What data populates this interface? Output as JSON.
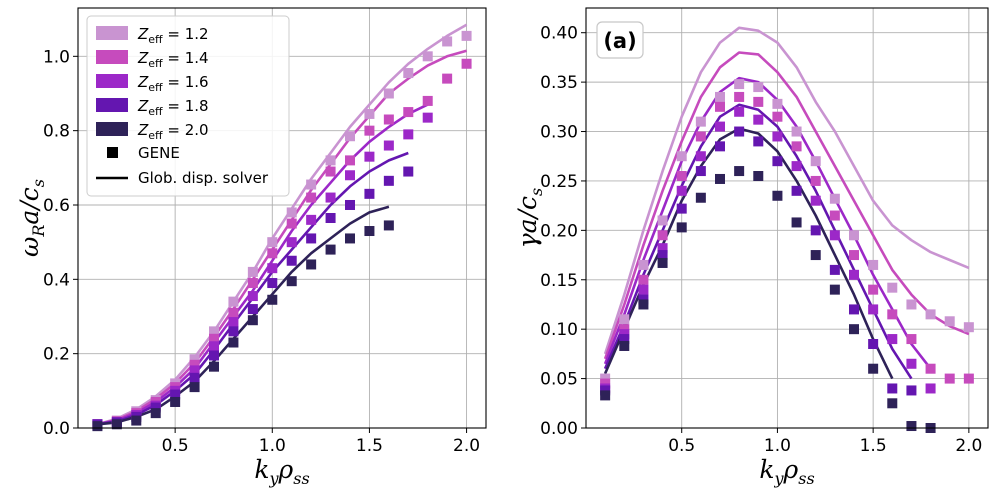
{
  "colors": {
    "series": [
      "#c994d1",
      "#c64bbd",
      "#9c28c8",
      "#6416b0",
      "#2e2258"
    ],
    "grid": "#b0b0b0"
  },
  "legend": {
    "series_labels": [
      {
        "base": "Z",
        "sub": "eff",
        "rest": " = 1.2"
      },
      {
        "base": "Z",
        "sub": "eff",
        "rest": " = 1.4"
      },
      {
        "base": "Z",
        "sub": "eff",
        "rest": " = 1.6"
      },
      {
        "base": "Z",
        "sub": "eff",
        "rest": " = 1.8"
      },
      {
        "base": "Z",
        "sub": "eff",
        "rest": " = 2.0"
      }
    ],
    "gene": "GENE",
    "solver": "Glob. disp. solver"
  },
  "chart_data": [
    {
      "type": "line",
      "xlabel": {
        "base": "k",
        "sub1": "y",
        "mid": "ρ",
        "sub2": "ss"
      },
      "ylabel": {
        "base": "ω",
        "sub1": "R",
        "mid": "a/c",
        "sub2": "s"
      },
      "xlim": [
        0.0,
        2.1
      ],
      "ylim": [
        0.0,
        1.13
      ],
      "xticks": [
        0.5,
        1.0,
        1.5,
        2.0
      ],
      "xtick_labels": [
        "0.5",
        "1.0",
        "1.5",
        "2.0"
      ],
      "yticks": [
        0.0,
        0.2,
        0.4,
        0.6,
        0.8,
        1.0
      ],
      "ytick_labels": [
        "0.0",
        "0.2",
        "0.4",
        "0.6",
        "0.8",
        "1.0"
      ],
      "grid": true,
      "legend_position": "top-left",
      "series": [
        {
          "name": "Zeff = 1.2",
          "solver_x": [
            0.1,
            0.2,
            0.3,
            0.4,
            0.5,
            0.6,
            0.7,
            0.8,
            0.9,
            1.0,
            1.1,
            1.2,
            1.3,
            1.4,
            1.5,
            1.6,
            1.7,
            1.8,
            1.9,
            2.0
          ],
          "solver_y": [
            0.01,
            0.025,
            0.05,
            0.085,
            0.13,
            0.19,
            0.26,
            0.34,
            0.42,
            0.51,
            0.59,
            0.67,
            0.74,
            0.81,
            0.87,
            0.93,
            0.98,
            1.02,
            1.055,
            1.085
          ],
          "gene_x": [
            0.1,
            0.2,
            0.3,
            0.4,
            0.5,
            0.6,
            0.7,
            0.8,
            0.9,
            1.0,
            1.1,
            1.2,
            1.3,
            1.4,
            1.5,
            1.6,
            1.7,
            1.8,
            1.9,
            2.0
          ],
          "gene_y": [
            0.01,
            0.02,
            0.045,
            0.075,
            0.12,
            0.185,
            0.26,
            0.34,
            0.42,
            0.5,
            0.58,
            0.655,
            0.72,
            0.785,
            0.845,
            0.9,
            0.955,
            1.0,
            1.04,
            1.055
          ]
        },
        {
          "name": "Zeff = 1.4",
          "solver_x": [
            0.1,
            0.2,
            0.3,
            0.4,
            0.5,
            0.6,
            0.7,
            0.8,
            0.9,
            1.0,
            1.1,
            1.2,
            1.3,
            1.4,
            1.5,
            1.6,
            1.7,
            1.8,
            1.9,
            2.0
          ],
          "solver_y": [
            0.01,
            0.022,
            0.045,
            0.078,
            0.12,
            0.175,
            0.245,
            0.32,
            0.4,
            0.48,
            0.56,
            0.64,
            0.71,
            0.78,
            0.84,
            0.9,
            0.94,
            0.975,
            1.0,
            1.015
          ],
          "gene_x": [
            0.1,
            0.2,
            0.3,
            0.4,
            0.5,
            0.6,
            0.7,
            0.8,
            0.9,
            1.0,
            1.1,
            1.2,
            1.3,
            1.4,
            1.5,
            1.6,
            1.7,
            1.8,
            1.9,
            2.0
          ],
          "gene_y": [
            0.01,
            0.018,
            0.04,
            0.07,
            0.11,
            0.17,
            0.24,
            0.31,
            0.39,
            0.47,
            0.55,
            0.62,
            0.69,
            0.72,
            0.8,
            0.83,
            0.85,
            0.88,
            0.94,
            0.98
          ]
        },
        {
          "name": "Zeff = 1.6",
          "solver_x": [
            0.1,
            0.2,
            0.3,
            0.4,
            0.5,
            0.6,
            0.7,
            0.8,
            0.9,
            1.0,
            1.1,
            1.2,
            1.3,
            1.4,
            1.5,
            1.6,
            1.7,
            1.8
          ],
          "solver_y": [
            0.01,
            0.02,
            0.04,
            0.07,
            0.11,
            0.16,
            0.23,
            0.3,
            0.37,
            0.45,
            0.53,
            0.6,
            0.66,
            0.72,
            0.77,
            0.81,
            0.845,
            0.87
          ],
          "gene_x": [
            0.1,
            0.2,
            0.3,
            0.4,
            0.5,
            0.6,
            0.7,
            0.8,
            0.9,
            1.0,
            1.1,
            1.2,
            1.3,
            1.4,
            1.5,
            1.6,
            1.7,
            1.8
          ],
          "gene_y": [
            0.01,
            0.016,
            0.035,
            0.06,
            0.1,
            0.155,
            0.22,
            0.285,
            0.355,
            0.43,
            0.5,
            0.56,
            0.62,
            0.68,
            0.73,
            0.76,
            0.79,
            0.835
          ]
        },
        {
          "name": "Zeff = 1.8",
          "solver_x": [
            0.1,
            0.2,
            0.3,
            0.4,
            0.5,
            0.6,
            0.7,
            0.8,
            0.9,
            1.0,
            1.1,
            1.2,
            1.3,
            1.4,
            1.5,
            1.6,
            1.7
          ],
          "solver_y": [
            0.01,
            0.018,
            0.035,
            0.062,
            0.1,
            0.145,
            0.21,
            0.28,
            0.35,
            0.42,
            0.48,
            0.54,
            0.6,
            0.65,
            0.69,
            0.72,
            0.74
          ],
          "gene_x": [
            0.1,
            0.2,
            0.3,
            0.4,
            0.5,
            0.6,
            0.7,
            0.8,
            0.9,
            1.0,
            1.1,
            1.2,
            1.3,
            1.4,
            1.5,
            1.6,
            1.7
          ],
          "gene_y": [
            0.01,
            0.015,
            0.03,
            0.055,
            0.09,
            0.135,
            0.195,
            0.26,
            0.32,
            0.39,
            0.45,
            0.51,
            0.565,
            0.6,
            0.63,
            0.665,
            0.69
          ]
        },
        {
          "name": "Zeff = 2.0",
          "solver_x": [
            0.1,
            0.2,
            0.3,
            0.4,
            0.5,
            0.6,
            0.7,
            0.8,
            0.9,
            1.0,
            1.1,
            1.2,
            1.3,
            1.4,
            1.5,
            1.6
          ],
          "solver_y": [
            0.01,
            0.015,
            0.03,
            0.05,
            0.085,
            0.125,
            0.18,
            0.24,
            0.3,
            0.36,
            0.42,
            0.47,
            0.51,
            0.55,
            0.58,
            0.595
          ],
          "gene_x": [
            0.1,
            0.2,
            0.3,
            0.4,
            0.5,
            0.6,
            0.7,
            0.8,
            0.9,
            1.0,
            1.1,
            1.2,
            1.3,
            1.4,
            1.5,
            1.6
          ],
          "gene_y": [
            0.005,
            0.01,
            0.02,
            0.04,
            0.07,
            0.11,
            0.165,
            0.23,
            0.29,
            0.345,
            0.395,
            0.44,
            0.48,
            0.51,
            0.53,
            0.545
          ]
        }
      ]
    },
    {
      "type": "line",
      "panel_label": "(a)",
      "xlabel": {
        "base": "k",
        "sub1": "y",
        "mid": "ρ",
        "sub2": "ss"
      },
      "ylabel": {
        "base": "γ",
        "sub1": "",
        "mid": "a/c",
        "sub2": "s"
      },
      "xlim": [
        0.0,
        2.1
      ],
      "ylim": [
        0.0,
        0.425
      ],
      "xticks": [
        0.5,
        1.0,
        1.5,
        2.0
      ],
      "xtick_labels": [
        "0.5",
        "1.0",
        "1.5",
        "2.0"
      ],
      "yticks": [
        0.0,
        0.05,
        0.1,
        0.15,
        0.2,
        0.25,
        0.3,
        0.35,
        0.4
      ],
      "ytick_labels": [
        "0.00",
        "0.05",
        "0.10",
        "0.15",
        "0.20",
        "0.25",
        "0.30",
        "0.35",
        "0.40"
      ],
      "grid": true,
      "series": [
        {
          "name": "Zeff = 1.2",
          "solver_x": [
            0.1,
            0.2,
            0.3,
            0.4,
            0.5,
            0.6,
            0.7,
            0.8,
            0.9,
            1.0,
            1.1,
            1.2,
            1.3,
            1.4,
            1.5,
            1.6,
            1.7,
            1.8,
            1.9,
            2.0
          ],
          "solver_y": [
            0.075,
            0.135,
            0.2,
            0.26,
            0.315,
            0.36,
            0.39,
            0.405,
            0.402,
            0.39,
            0.365,
            0.33,
            0.3,
            0.265,
            0.23,
            0.205,
            0.19,
            0.178,
            0.17,
            0.162
          ],
          "gene_x": [
            0.1,
            0.2,
            0.3,
            0.4,
            0.5,
            0.6,
            0.7,
            0.8,
            0.9,
            1.0,
            1.1,
            1.2,
            1.3,
            1.4,
            1.5,
            1.6,
            1.7,
            1.8,
            1.9,
            2.0
          ],
          "gene_y": [
            0.05,
            0.11,
            0.165,
            0.21,
            0.275,
            0.31,
            0.335,
            0.348,
            0.345,
            0.328,
            0.3,
            0.27,
            0.232,
            0.195,
            0.165,
            0.142,
            0.125,
            0.115,
            0.108,
            0.102
          ]
        },
        {
          "name": "Zeff = 1.4",
          "solver_x": [
            0.1,
            0.2,
            0.3,
            0.4,
            0.5,
            0.6,
            0.7,
            0.8,
            0.9,
            1.0,
            1.1,
            1.2,
            1.3,
            1.4,
            1.5,
            1.6,
            1.7,
            1.8,
            1.9,
            2.0
          ],
          "solver_y": [
            0.07,
            0.125,
            0.185,
            0.24,
            0.29,
            0.335,
            0.365,
            0.38,
            0.378,
            0.36,
            0.335,
            0.3,
            0.265,
            0.23,
            0.195,
            0.16,
            0.135,
            0.115,
            0.103,
            0.095
          ],
          "gene_x": [
            0.1,
            0.2,
            0.3,
            0.4,
            0.5,
            0.6,
            0.7,
            0.8,
            0.9,
            1.0,
            1.1,
            1.2,
            1.3,
            1.4,
            1.5,
            1.6,
            1.7,
            1.8,
            1.9,
            2.0
          ],
          "gene_y": [
            0.045,
            0.1,
            0.15,
            0.195,
            0.255,
            0.295,
            0.325,
            0.335,
            0.33,
            0.315,
            0.285,
            0.25,
            0.215,
            0.175,
            0.14,
            0.115,
            0.09,
            0.06,
            0.05,
            0.05
          ]
        },
        {
          "name": "Zeff = 1.6",
          "solver_x": [
            0.1,
            0.2,
            0.3,
            0.4,
            0.5,
            0.6,
            0.7,
            0.8,
            0.9,
            1.0,
            1.1,
            1.2,
            1.3,
            1.4,
            1.5,
            1.6,
            1.7,
            1.8
          ],
          "solver_y": [
            0.065,
            0.115,
            0.17,
            0.22,
            0.27,
            0.31,
            0.34,
            0.354,
            0.35,
            0.332,
            0.305,
            0.27,
            0.232,
            0.195,
            0.155,
            0.12,
            0.085,
            0.06
          ],
          "gene_x": [
            0.1,
            0.2,
            0.3,
            0.4,
            0.5,
            0.6,
            0.7,
            0.8,
            0.9,
            1.0,
            1.1,
            1.2,
            1.3,
            1.4,
            1.5,
            1.6,
            1.7,
            1.8
          ],
          "gene_y": [
            0.04,
            0.095,
            0.14,
            0.182,
            0.24,
            0.275,
            0.305,
            0.32,
            0.312,
            0.295,
            0.265,
            0.23,
            0.195,
            0.155,
            0.12,
            0.09,
            0.065,
            0.04
          ]
        },
        {
          "name": "Zeff = 1.8",
          "solver_x": [
            0.1,
            0.2,
            0.3,
            0.4,
            0.5,
            0.6,
            0.7,
            0.8,
            0.9,
            1.0,
            1.1,
            1.2,
            1.3,
            1.4,
            1.5,
            1.6,
            1.7
          ],
          "solver_y": [
            0.06,
            0.105,
            0.155,
            0.2,
            0.245,
            0.285,
            0.315,
            0.327,
            0.322,
            0.305,
            0.275,
            0.24,
            0.2,
            0.16,
            0.12,
            0.08,
            0.05
          ],
          "gene_x": [
            0.1,
            0.2,
            0.3,
            0.4,
            0.5,
            0.6,
            0.7,
            0.8,
            0.9,
            1.0,
            1.1,
            1.2,
            1.3,
            1.4,
            1.5,
            1.6,
            1.7
          ],
          "gene_y": [
            0.038,
            0.09,
            0.13,
            0.175,
            0.222,
            0.26,
            0.285,
            0.3,
            0.29,
            0.27,
            0.24,
            0.2,
            0.16,
            0.12,
            0.085,
            0.04,
            0.038
          ]
        },
        {
          "name": "Zeff = 2.0",
          "solver_x": [
            0.1,
            0.2,
            0.3,
            0.4,
            0.5,
            0.6,
            0.7,
            0.8,
            0.9,
            1.0,
            1.1,
            1.2,
            1.3,
            1.4,
            1.5,
            1.6
          ],
          "solver_y": [
            0.055,
            0.1,
            0.145,
            0.185,
            0.23,
            0.265,
            0.292,
            0.303,
            0.298,
            0.28,
            0.25,
            0.215,
            0.175,
            0.135,
            0.09,
            0.05
          ],
          "gene_x": [
            0.1,
            0.2,
            0.3,
            0.4,
            0.5,
            0.6,
            0.7,
            0.8,
            0.9,
            1.0,
            1.1,
            1.2,
            1.3,
            1.4,
            1.5,
            1.6,
            1.7,
            1.8
          ],
          "gene_y": [
            0.033,
            0.083,
            0.125,
            0.167,
            0.203,
            0.233,
            0.252,
            0.26,
            0.255,
            0.235,
            0.208,
            0.175,
            0.14,
            0.1,
            0.06,
            0.025,
            0.002,
            0.0
          ]
        }
      ]
    }
  ]
}
